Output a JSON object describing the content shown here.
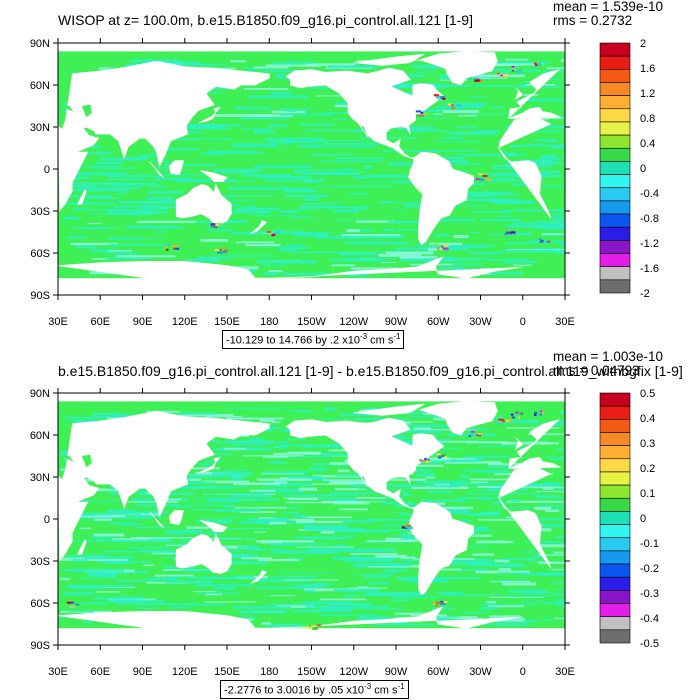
{
  "colors": {
    "land": "#ffffff",
    "ocean_main": "#3ef055",
    "ocean_cyan": "#2ef0c6",
    "ocean_light": "#8ff5e4",
    "positive_hot": "#e8192c",
    "negative_cold": "#1f28e6",
    "levels_palette": [
      "#c8001f",
      "#e81e14",
      "#f35a14",
      "#f58a26",
      "#ffae34",
      "#ffd846",
      "#e8f246",
      "#8fe631",
      "#38d948",
      "#1ee0b4",
      "#2ff6f0",
      "#29c9f0",
      "#159af0",
      "#0b56f0",
      "#2b1de8",
      "#8a14c8",
      "#e21ee8",
      "#c0c0c0",
      "#6e6e6e"
    ]
  },
  "panels": [
    {
      "title": "WISOP at z= 100.0m, b.e15.B1850.f09_g16.pi_control.all.121 [1-9]",
      "stats": "mean = 1.539e-10\nrms = 0.2732",
      "subtitle": "-10.129 to 14.766 by .2 x10",
      "subtitle_exp": "-3",
      "subtitle_unit": " cm s",
      "subtitle_unit_exp": "-1",
      "y_ticks": [
        "90N",
        "60N",
        "30N",
        "0",
        "30S",
        "60S",
        "90S"
      ],
      "x_ticks": [
        "30E",
        "60E",
        "90E",
        "120E",
        "150E",
        "180",
        "150W",
        "120W",
        "90W",
        "60W",
        "30W",
        "0",
        "30E"
      ],
      "colorbar_labels": [
        "2",
        "1.6",
        "1.2",
        "0.8",
        "0.4",
        "0",
        "-0.4",
        "-0.8",
        "-1.2",
        "-1.6",
        "-2"
      ]
    },
    {
      "title": "b.e15.B1850.f09_g16.pi_control.all.121 [1-9] - b.e15.B1850.f09_g16.pi_control.all.119_withbgfix [1-9]",
      "stats": "mean = 1.003e-10\nrms = 0.04793",
      "subtitle": "-2.2776 to 3.0016 by .05 x10",
      "subtitle_exp": "-3",
      "subtitle_unit": " cm s",
      "subtitle_unit_exp": "-1",
      "y_ticks": [
        "90N",
        "60N",
        "30N",
        "0",
        "30S",
        "60S",
        "90S"
      ],
      "x_ticks": [
        "30E",
        "60E",
        "90E",
        "120E",
        "150E",
        "180",
        "150W",
        "120W",
        "90W",
        "60W",
        "30W",
        "0",
        "30E"
      ],
      "colorbar_labels": [
        "0.5",
        "0.4",
        "0.3",
        "0.2",
        "0.1",
        "0",
        "-0.1",
        "-0.2",
        "-0.3",
        "-0.4",
        "-0.5"
      ]
    }
  ]
}
